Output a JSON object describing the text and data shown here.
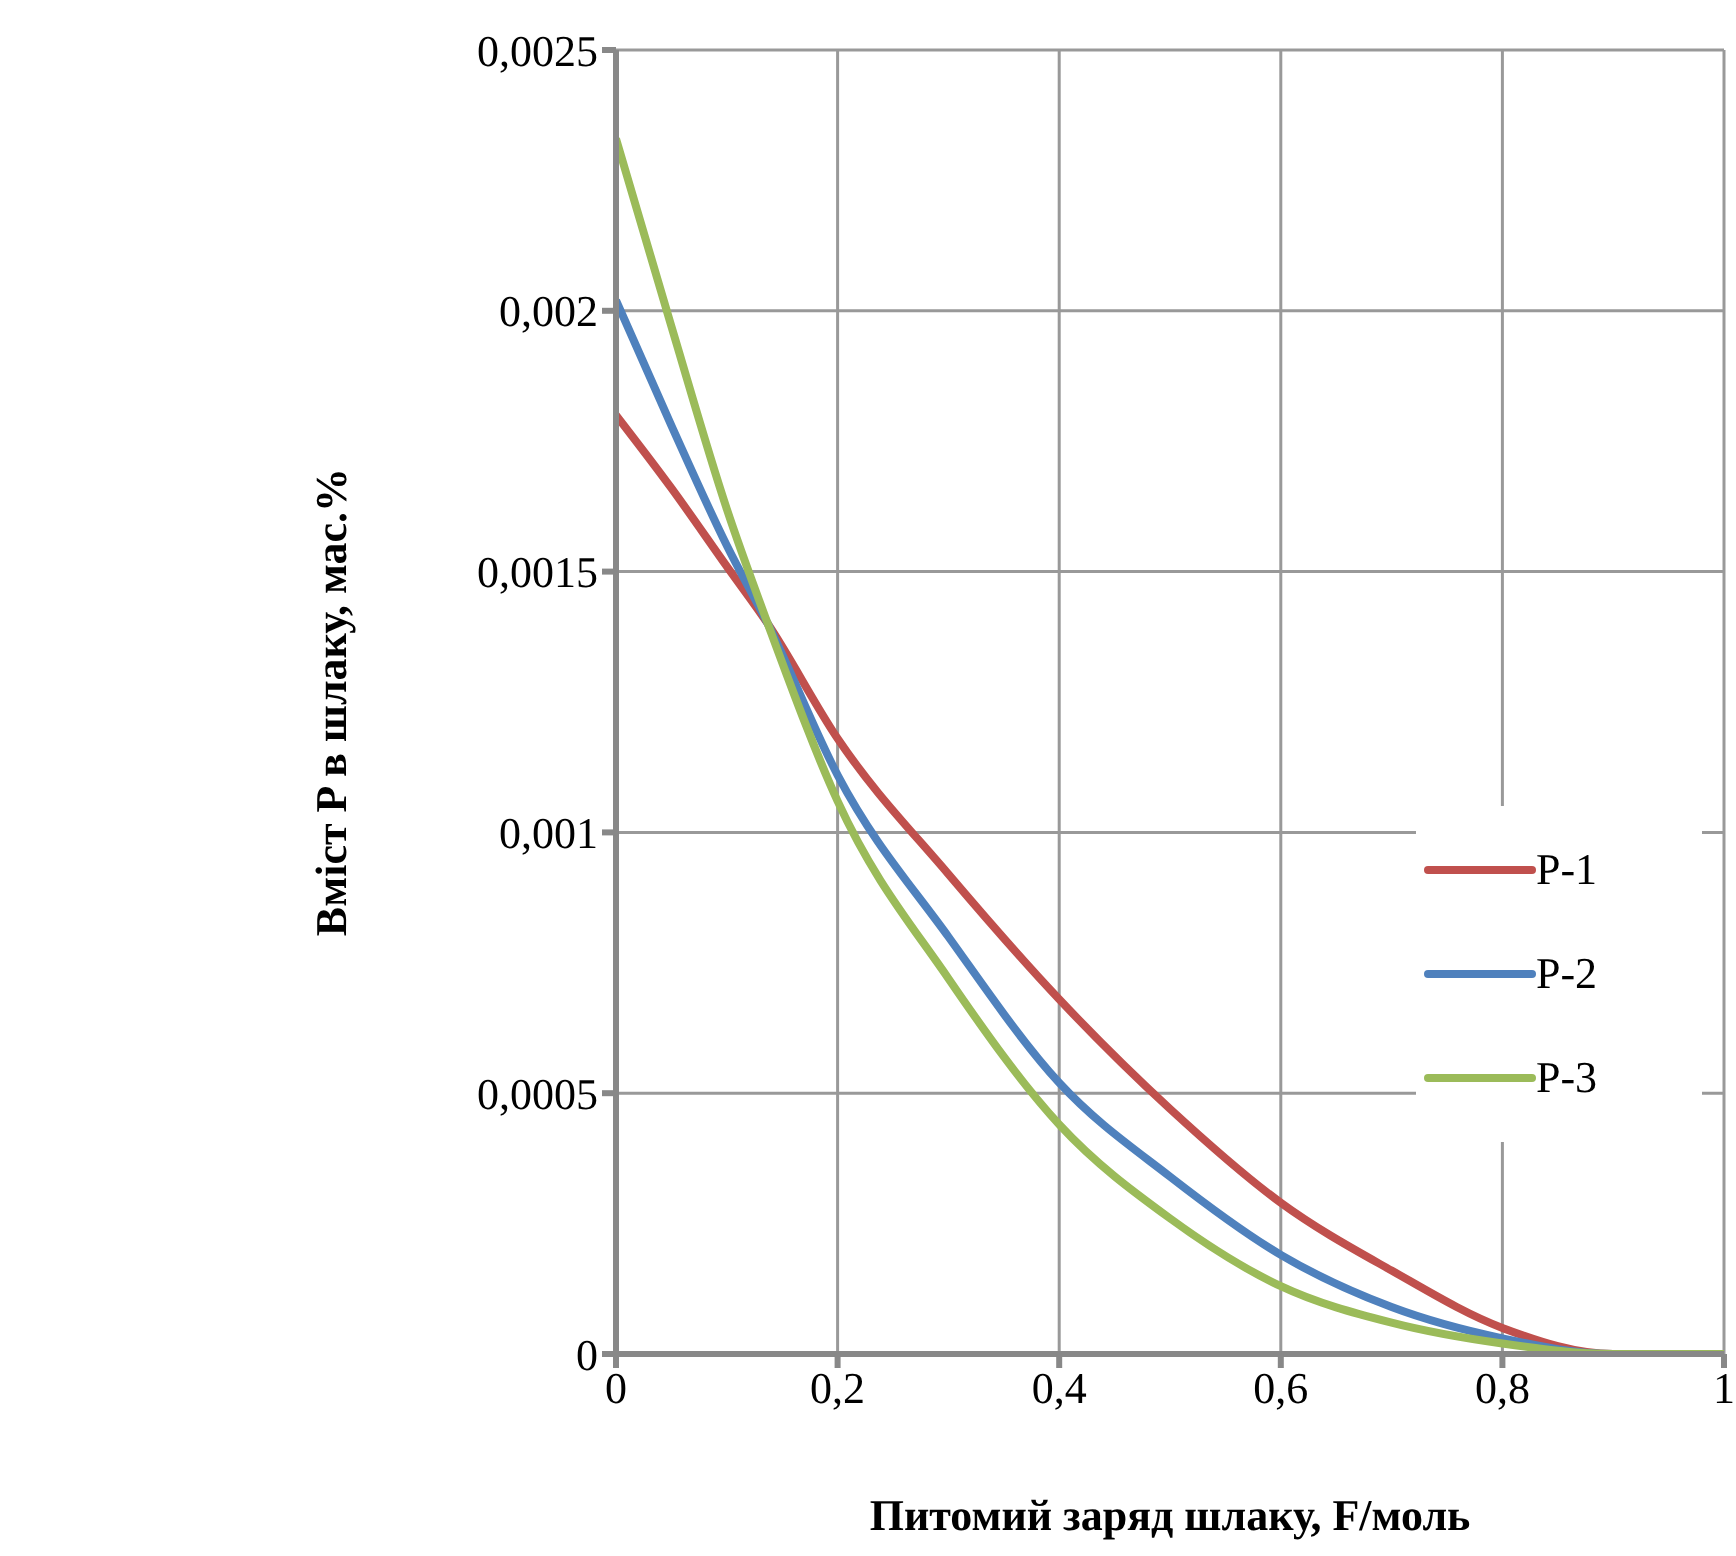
{
  "chart_data": {
    "type": "line",
    "xlabel": "Питомий заряд шлаку, F/моль",
    "ylabel": "Вміст P в шлаку, мас.%",
    "x": [
      0,
      0.05,
      0.1,
      0.137,
      0.2,
      0.3,
      0.4,
      0.5,
      0.6,
      0.7,
      0.8,
      0.9,
      1
    ],
    "series": [
      {
        "name": "P-1",
        "color": "#c0504d",
        "values": [
          0.0018,
          0.00166,
          0.00151,
          0.0014,
          0.00118,
          0.00092,
          0.00068,
          0.00047,
          0.00029,
          0.00016,
          5e-05,
          0,
          0
        ]
      },
      {
        "name": "P-2",
        "color": "#4f81bd",
        "values": [
          0.00202,
          0.00178,
          0.00155,
          0.0014,
          0.00111,
          0.0008,
          0.00052,
          0.00034,
          0.00019,
          9e-05,
          3e-05,
          0,
          0
        ]
      },
      {
        "name": "P-3",
        "color": "#9bbb59",
        "values": [
          0.00233,
          0.00197,
          0.00162,
          0.0014,
          0.00106,
          0.00072,
          0.00044,
          0.00026,
          0.00013,
          6e-05,
          2e-05,
          0,
          0
        ]
      }
    ],
    "xlim": [
      0,
      1
    ],
    "xticks": [
      {
        "value": 0,
        "label": "0"
      },
      {
        "value": 0.2,
        "label": "0,2"
      },
      {
        "value": 0.4,
        "label": "0,4"
      },
      {
        "value": 0.6,
        "label": "0,6"
      },
      {
        "value": 0.8,
        "label": "0,8"
      },
      {
        "value": 1,
        "label": "1"
      }
    ],
    "ylim": [
      0,
      0.0025
    ],
    "yticks": [
      {
        "value": 0,
        "label": "0"
      },
      {
        "value": 0.0005,
        "label": "0,0005"
      },
      {
        "value": 0.001,
        "label": "0,001"
      },
      {
        "value": 0.0015,
        "label": "0,0015"
      },
      {
        "value": 0.002,
        "label": "0,002"
      },
      {
        "value": 0.0025,
        "label": "0,0025"
      }
    ],
    "grid": true,
    "legend": "right",
    "marker": "none",
    "line_style": "solid"
  }
}
